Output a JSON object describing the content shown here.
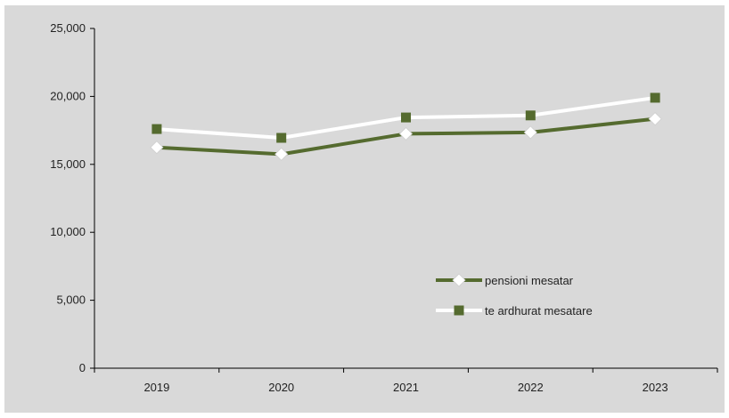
{
  "chart_data": {
    "type": "line",
    "title": "",
    "xlabel": "",
    "ylabel": "",
    "categories": [
      "2019",
      "2020",
      "2021",
      "2022",
      "2023"
    ],
    "ylim": [
      0,
      25000
    ],
    "yticks": [
      0,
      5000,
      10000,
      15000,
      20000,
      25000
    ],
    "ytick_labels": [
      "0",
      "5,000",
      "10,000",
      "15,000",
      "20,000",
      "25,000"
    ],
    "grid": false,
    "legend_position": "right",
    "series": [
      {
        "name": "pensioni mesatar",
        "values": [
          16250,
          15750,
          17250,
          17350,
          18350
        ],
        "line_color": "#556b2f",
        "marker": "diamond",
        "marker_color": "#ffffff"
      },
      {
        "name": "te ardhurat mesatare",
        "values": [
          17600,
          16950,
          18450,
          18600,
          19900
        ],
        "line_color": "#ffffff",
        "marker": "square",
        "marker_color": "#556b2f"
      }
    ]
  },
  "colors": {
    "background": "#d9d9d9",
    "axis": "#000000"
  }
}
